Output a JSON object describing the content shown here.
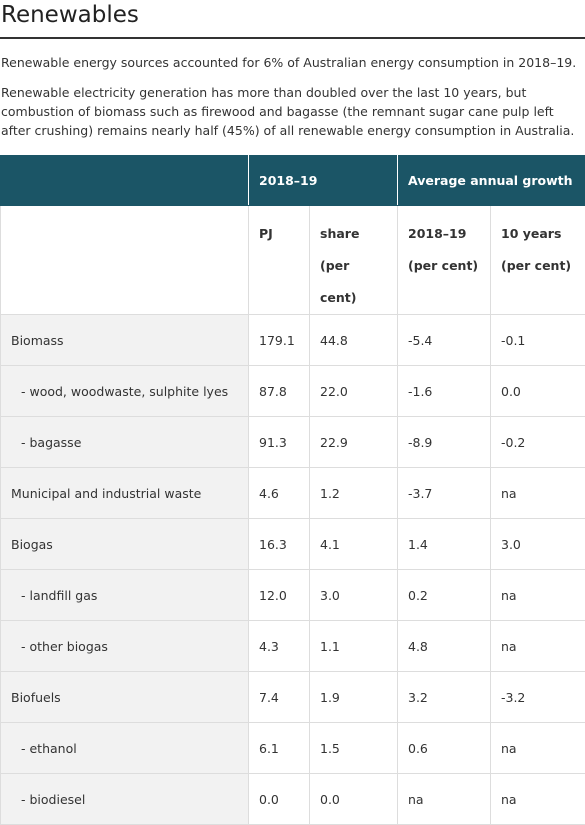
{
  "header": {
    "title": "Renewables"
  },
  "paragraphs": [
    "Renewable energy sources accounted for 6% of Australian energy consumption in 2018–19.",
    "Renewable electricity generation has more than doubled over the last 10 years, but combustion of biomass such as firewood and bagasse (the remnant sugar cane pulp left after crushing) remains nearly half (45%) of all renewable energy consumption in Australia."
  ],
  "table": {
    "header_groups": [
      "2018–19",
      "Average annual growth"
    ],
    "subheaders": [
      [
        "PJ"
      ],
      [
        "share",
        "(per cent)"
      ],
      [
        "2018–19",
        "(per cent)"
      ],
      [
        "10 years",
        "(per cent)"
      ]
    ],
    "rows": [
      [
        "Biomass",
        "179.1",
        "44.8",
        "-5.4",
        "-0.1"
      ],
      [
        "- wood, woodwaste, sulphite lyes",
        "87.8",
        "22.0",
        "-1.6",
        "0.0"
      ],
      [
        "- bagasse",
        "91.3",
        "22.9",
        "-8.9",
        "-0.2"
      ],
      [
        "Municipal and industrial waste",
        "4.6",
        "1.2",
        "-3.7",
        "na"
      ],
      [
        "Biogas",
        "16.3",
        "4.1",
        "1.4",
        "3.0"
      ],
      [
        "- landfill gas",
        "12.0",
        "3.0",
        "0.2",
        "na"
      ],
      [
        "- other biogas",
        "4.3",
        "1.1",
        "4.8",
        "na"
      ],
      [
        "Biofuels",
        "7.4",
        "1.9",
        "3.2",
        "-3.2"
      ],
      [
        "- ethanol",
        "6.1",
        "1.5",
        "0.6",
        "na"
      ],
      [
        "- biodiesel",
        "0.0",
        "0.0",
        "na",
        "na"
      ]
    ]
  }
}
